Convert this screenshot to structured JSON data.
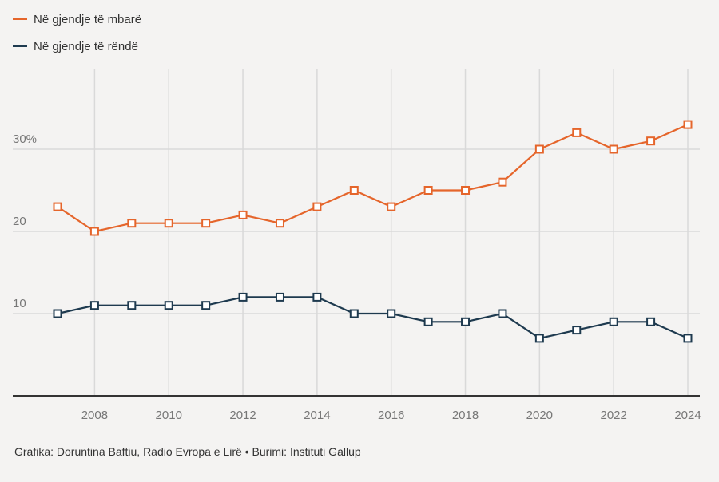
{
  "chart_data": {
    "type": "line",
    "title": "",
    "xlabel": "",
    "ylabel": "",
    "x": [
      2007,
      2008,
      2009,
      2010,
      2011,
      2012,
      2013,
      2014,
      2015,
      2016,
      2017,
      2018,
      2019,
      2020,
      2021,
      2022,
      2023,
      2024
    ],
    "x_ticks": [
      "2008",
      "2010",
      "2012",
      "2014",
      "2016",
      "2018",
      "2020",
      "2022",
      "2024"
    ],
    "y_ticks": [
      "10",
      "20",
      "30%"
    ],
    "ylim": [
      0,
      40
    ],
    "grid": true,
    "legend_position": "top-left",
    "series": [
      {
        "name": "Në gjendje të mbarë",
        "color": "#e5652b",
        "values": [
          23,
          20,
          21,
          21,
          21,
          22,
          21,
          23,
          25,
          23,
          25,
          25,
          26,
          30,
          32,
          30,
          31,
          33
        ]
      },
      {
        "name": "Në gjendje të rëndë",
        "color": "#1e3a4f",
        "values": [
          10,
          11,
          11,
          11,
          11,
          12,
          12,
          12,
          10,
          10,
          9,
          9,
          10,
          7,
          8,
          9,
          9,
          7
        ]
      }
    ]
  },
  "legend": {
    "items": [
      {
        "label": "Në gjendje të mbarë",
        "color": "#e5652b"
      },
      {
        "label": "Në gjendje të rëndë",
        "color": "#1e3a4f"
      }
    ]
  },
  "footer": {
    "credit": "Grafika: Doruntina Baftiu, Radio Evropa e Lirë • Burimi: Instituti Gallup"
  },
  "colors": {
    "background": "#f4f3f2",
    "grid": "#d9d9d9",
    "axis": "#333333",
    "tick_label": "#777777"
  }
}
